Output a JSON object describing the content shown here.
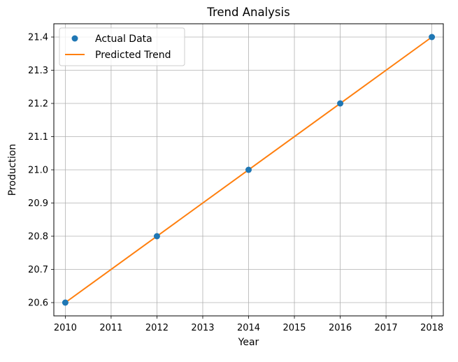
{
  "chart_data": {
    "type": "line",
    "title": "Trend Analysis",
    "xlabel": "Year",
    "ylabel": "Production",
    "xlim": [
      2009.75,
      2018.25
    ],
    "ylim": [
      20.56,
      21.44
    ],
    "xticks": [
      "2010",
      "2011",
      "2012",
      "2013",
      "2014",
      "2015",
      "2016",
      "2017",
      "2018"
    ],
    "yticks": [
      "20.6",
      "20.7",
      "20.8",
      "20.9",
      "21.0",
      "21.1",
      "21.2",
      "21.3",
      "21.4"
    ],
    "grid": true,
    "legend_position": "top-left",
    "series": [
      {
        "name": "Actual Data",
        "kind": "scatter",
        "color": "#1f77b4",
        "x": [
          2010,
          2012,
          2014,
          2016,
          2018
        ],
        "y": [
          20.6,
          20.8,
          21.0,
          21.2,
          21.4
        ]
      },
      {
        "name": "Predicted Trend",
        "kind": "line",
        "color": "#ff7f0e",
        "x": [
          2010,
          2018
        ],
        "y": [
          20.6,
          21.4
        ]
      }
    ]
  }
}
